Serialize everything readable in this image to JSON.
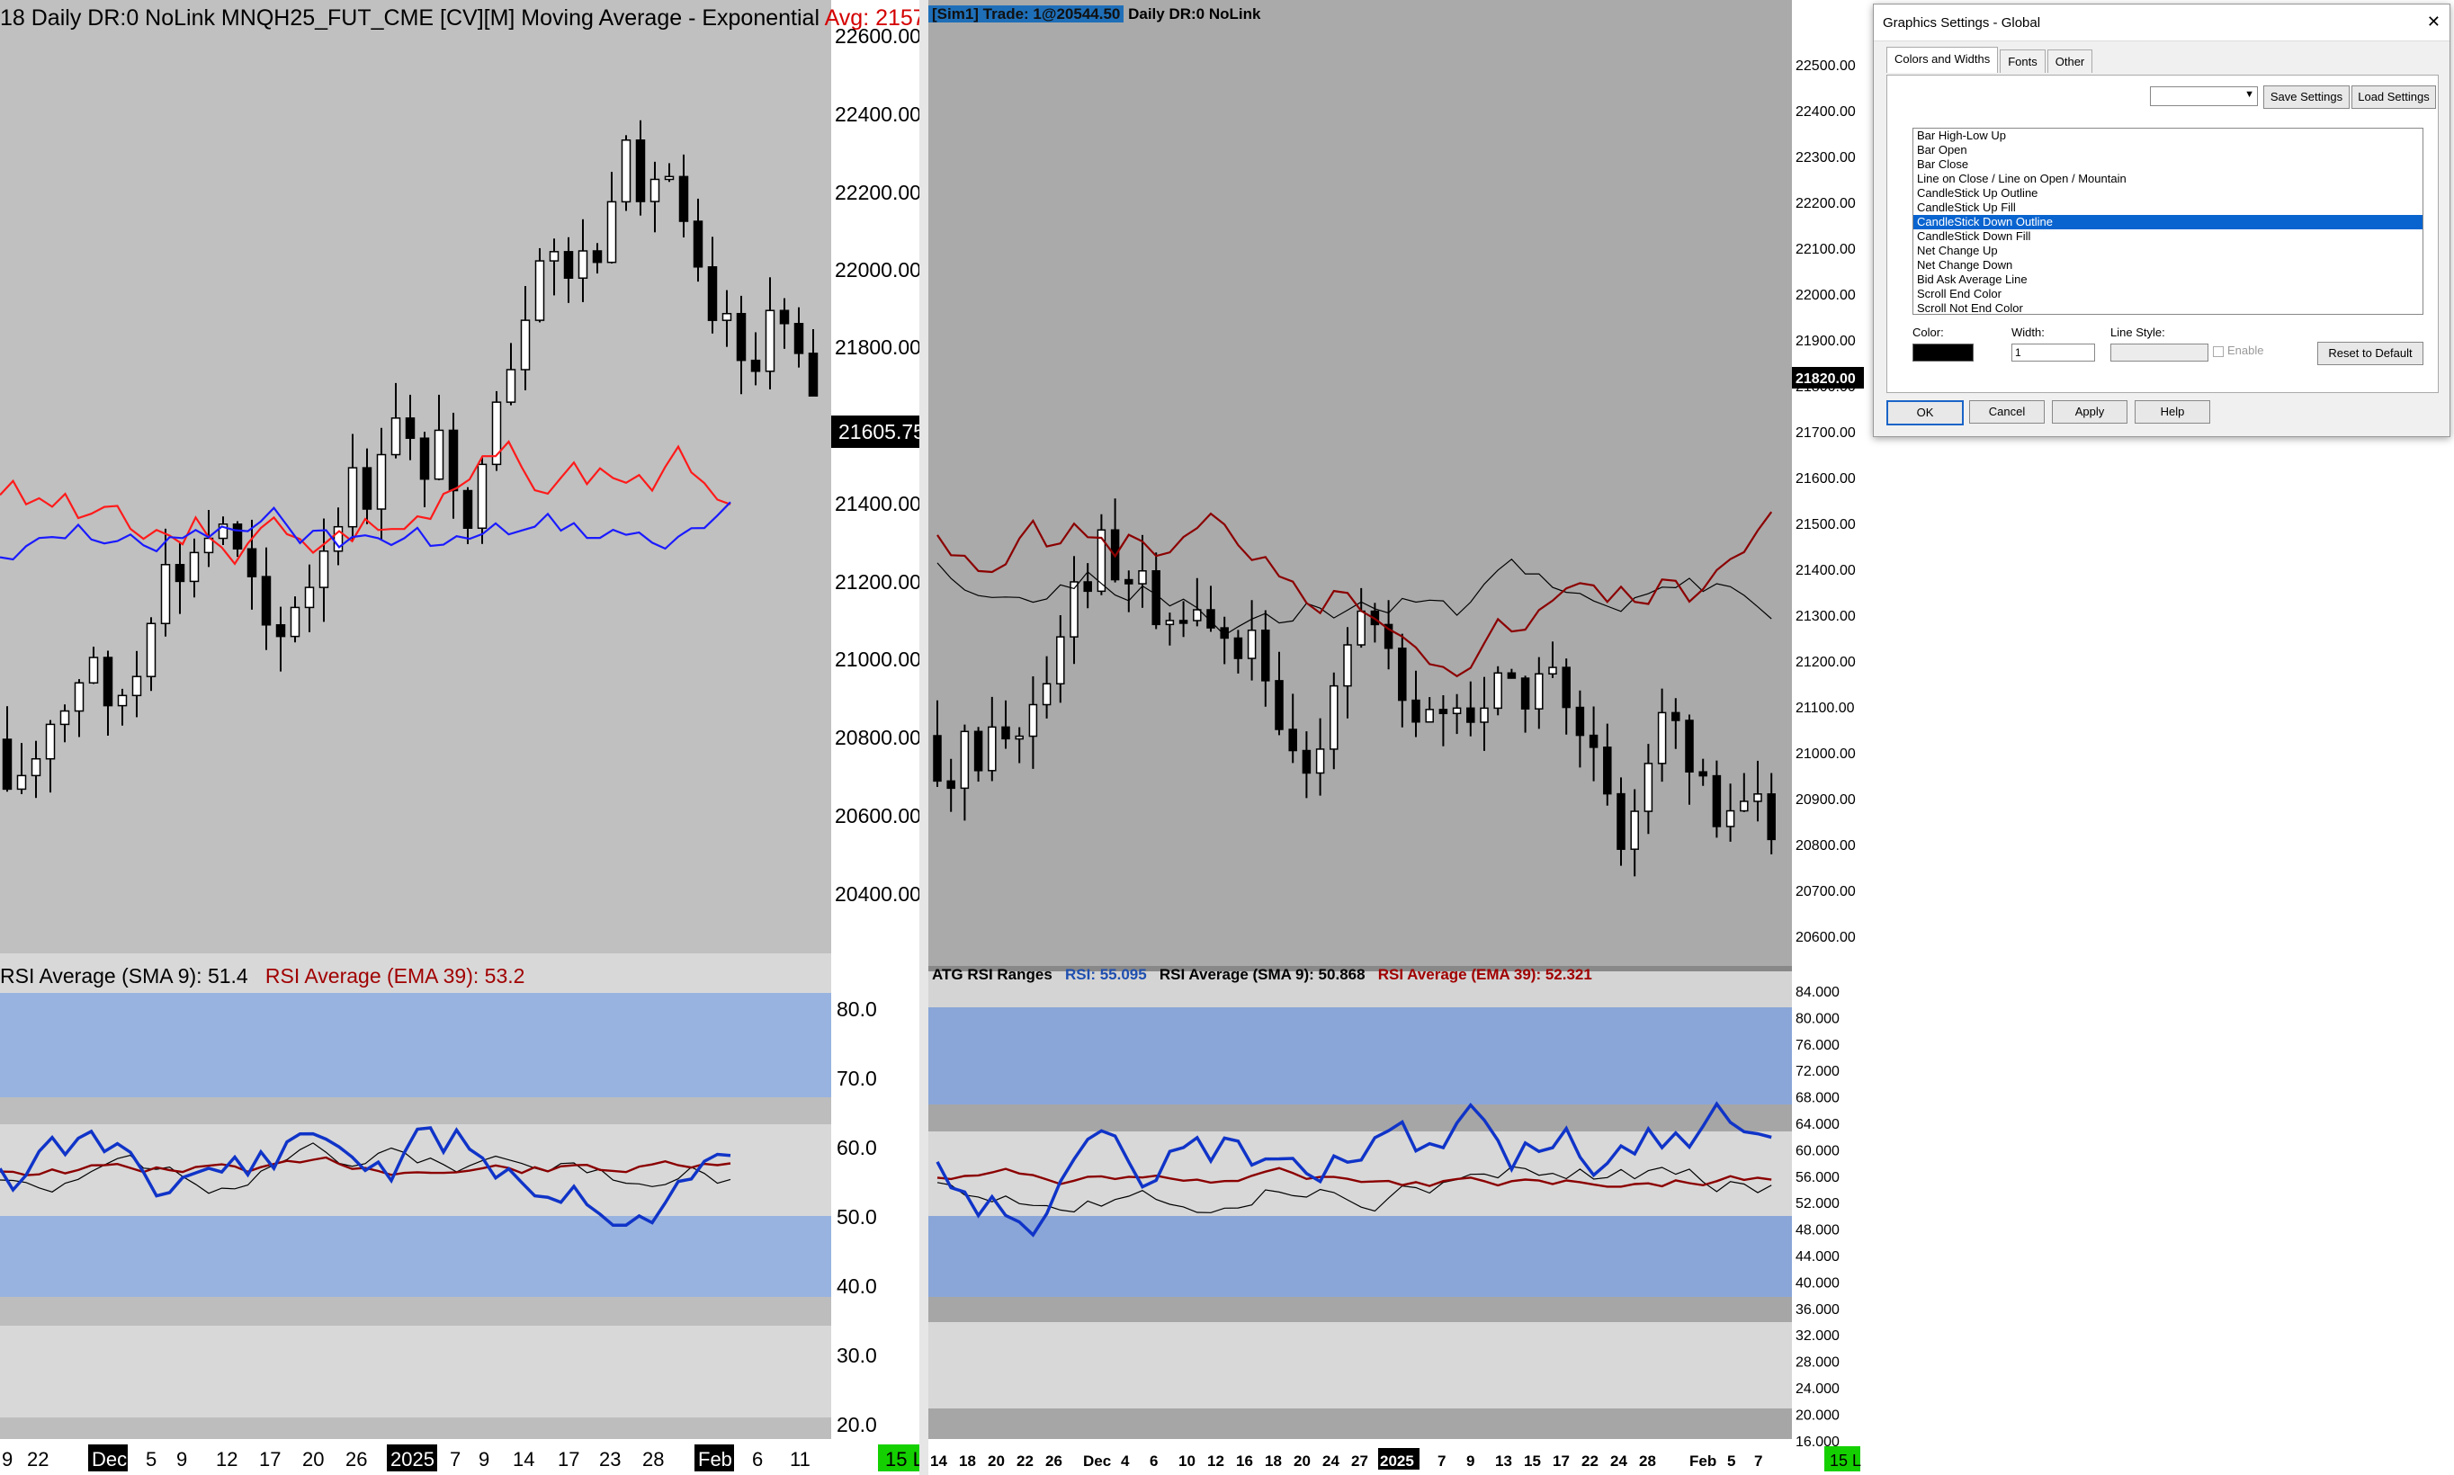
{
  "left_chart": {
    "title_main": "18 Daily DR:0 NoLink MNQH25_FUT_CME [CV][M] Moving Average - Exponential",
    "title_avg": "Avg: 2157",
    "price_axis": [
      "22600.00",
      "22400.00",
      "22200.00",
      "22000.00",
      "21800.00",
      "21400.00",
      "21200.00",
      "21000.00",
      "20800.00",
      "20600.00",
      "20400.00"
    ],
    "last_price": "21605.75",
    "rsi_title_sma": "RSI Average (SMA 9): 51.4",
    "rsi_title_ema": "RSI Average (EMA 39): 53.2",
    "rsi_axis": [
      "80.0",
      "70.0",
      "60.0",
      "50.0",
      "40.0",
      "30.0",
      "20.0"
    ],
    "x_labels": [
      "9",
      "22",
      "Dec",
      "5",
      "9",
      "12",
      "17",
      "20",
      "26",
      "2025",
      "7",
      "9",
      "14",
      "17",
      "23",
      "28",
      "Feb",
      "6",
      "11"
    ],
    "x_highlight": [
      "Dec",
      "2025",
      "Feb"
    ],
    "corner_badge": "15 L",
    "colors": {
      "ema_fast": "#ff1a1a",
      "ema_slow": "#1a1aff",
      "rsi": "#1034c8",
      "rsi_ema": "#8b0000",
      "rsi_sma": "#000000",
      "bg": "#c0c0c0",
      "band": "#98b3e0"
    }
  },
  "right_chart": {
    "top_badge": "[Sim1]  Trade: 1@20544.50",
    "top_title": "Daily DR:0 NoLink",
    "price_axis": [
      "22500.00",
      "22400.00",
      "22300.00",
      "22200.00",
      "22100.00",
      "22000.00",
      "21900.00",
      "21800.00",
      "21700.00",
      "21600.00",
      "21500.00",
      "21400.00",
      "21300.00",
      "21200.00",
      "21100.00",
      "21000.00",
      "20900.00",
      "20800.00",
      "20700.00",
      "20600.00"
    ],
    "last_price": "21820.00",
    "rsi_title_name": "ATG RSI Ranges",
    "rsi_title_rsi": "RSI: 55.095",
    "rsi_title_sma": "RSI Average (SMA 9): 50.868",
    "rsi_title_ema": "RSI Average (EMA 39): 52.321",
    "rsi_axis": [
      "84.000",
      "80.000",
      "76.000",
      "72.000",
      "68.000",
      "64.000",
      "60.000",
      "56.000",
      "52.000",
      "48.000",
      "44.000",
      "40.000",
      "36.000",
      "32.000",
      "28.000",
      "24.000",
      "20.000",
      "16.000"
    ],
    "x_labels": [
      "14",
      "18",
      "20",
      "22",
      "26",
      "Dec",
      "4",
      "6",
      "10",
      "12",
      "16",
      "18",
      "20",
      "24",
      "27",
      "2025",
      "7",
      "9",
      "13",
      "15",
      "17",
      "22",
      "24",
      "28",
      "Feb",
      "5",
      "7"
    ],
    "x_highlight": [
      "2025"
    ],
    "corner_badge": "15 L",
    "colors": {
      "ma_red": "#8b0000",
      "ma_black": "#000000",
      "rsi": "#1034c8",
      "bg": "#aaaaaa",
      "band": "#8aa6d8"
    }
  },
  "dialog": {
    "title": "Graphics Settings - Global",
    "close_glyph": "✕",
    "tabs": [
      "Colors and Widths",
      "Fonts",
      "Other"
    ],
    "save_settings": "Save Settings",
    "load_settings": "Load Settings",
    "list_items": [
      "Bar High-Low Up",
      "Bar Open",
      "Bar Close",
      "Line on Close / Line on Open / Mountain",
      "CandleStick Up Outline",
      "CandleStick Up Fill",
      "CandleStick Down Outline",
      "CandleStick Down Fill",
      "Net Change Up",
      "Net Change Down",
      "Bid Ask Average Line",
      "Scroll End Color",
      "Scroll Not End Color"
    ],
    "selected_item": "CandleStick Down Outline",
    "color_label": "Color:",
    "width_label": "Width:",
    "width_value": "1",
    "line_style_label": "Line Style:",
    "enable_label": "Enable",
    "reset_label": "Reset to Default",
    "ok": "OK",
    "cancel": "Cancel",
    "apply": "Apply",
    "help": "Help"
  }
}
